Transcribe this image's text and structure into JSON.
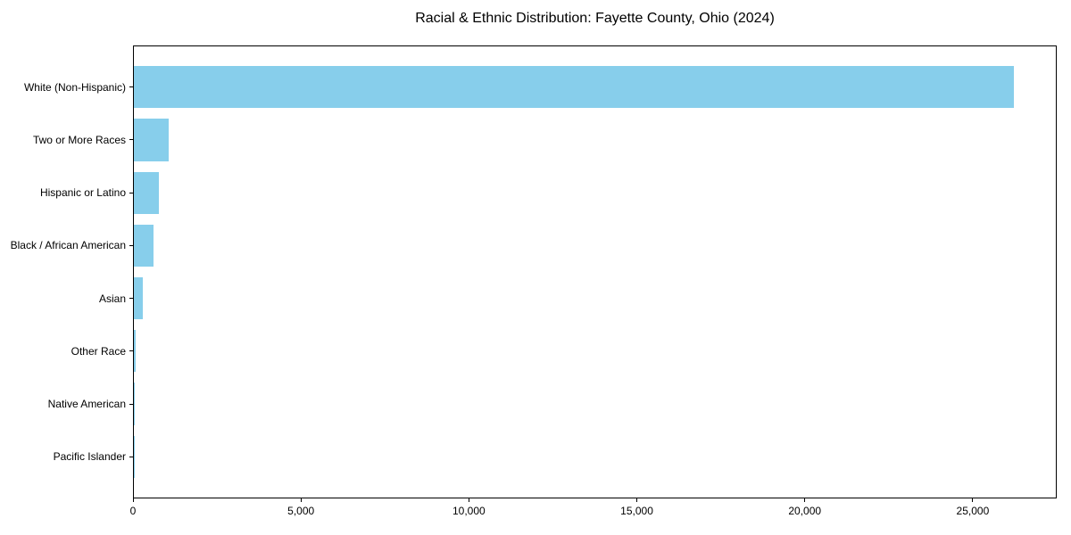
{
  "page": {
    "title": "Racial & Ethnic Distribution: Fayette County, Ohio (2024)"
  },
  "chart_data": {
    "type": "bar",
    "orientation": "horizontal",
    "title": "Racial & Ethnic Distribution: Fayette County, Ohio (2024)",
    "categories": [
      "White (Non-Hispanic)",
      "Two or More Races",
      "Hispanic or Latino",
      "Black / African American",
      "Asian",
      "Other Race",
      "Native American",
      "Pacific Islander"
    ],
    "values": [
      26200,
      1030,
      735,
      585,
      260,
      40,
      20,
      10
    ],
    "bar_color": "#87CEEB",
    "axis_color": "#000000",
    "xlabel": "",
    "ylabel": "",
    "xlim": [
      0,
      27500
    ],
    "xtick_values": [
      0,
      5000,
      10000,
      15000,
      20000,
      25000
    ],
    "xtick_labels": [
      "0",
      "5,000",
      "10,000",
      "15,000",
      "20,000",
      "25,000"
    ],
    "grid": false,
    "legend": null
  }
}
